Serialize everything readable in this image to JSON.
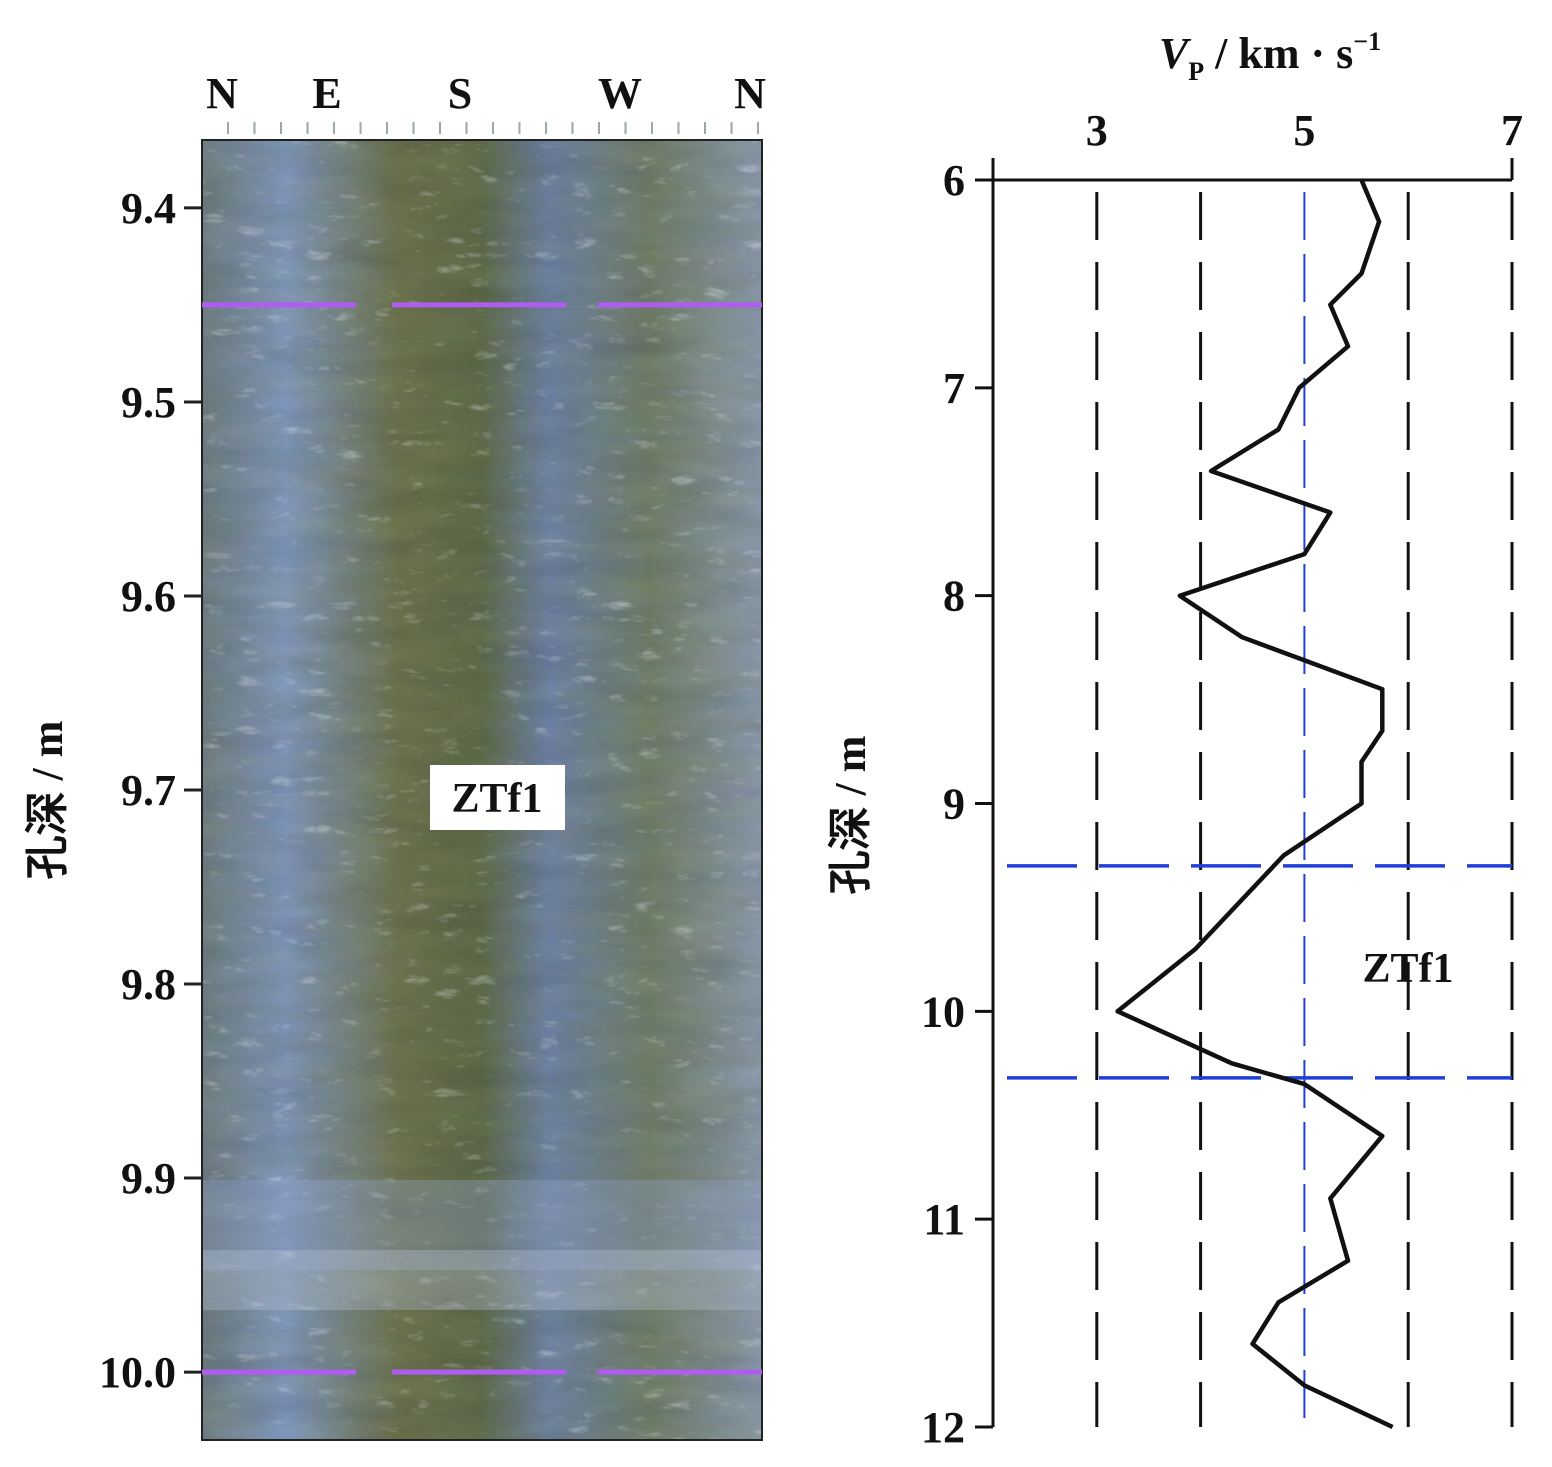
{
  "borehole_image": {
    "compass_labels": [
      "N",
      "E",
      "S",
      "W",
      "N"
    ],
    "depth_axis_label": "孔深 / m",
    "depth_ticks": [
      "9.4",
      "9.5",
      "9.6",
      "9.7",
      "9.8",
      "9.9",
      "10.0"
    ],
    "depth_range": [
      9.365,
      10.035
    ],
    "fracture_marker_depths": [
      9.45,
      10.0
    ],
    "fracture_marker_color": "#b15cf0",
    "zone_label": "ZTf1"
  },
  "chart_data": {
    "type": "line",
    "title_main": "V",
    "title_sub": "P",
    "title_unit": " / km · s",
    "title_exp": "−1",
    "xlabel": "V_P / km·s⁻¹",
    "ylabel": "孔深 / m",
    "x_ticks": [
      "3",
      "5",
      "7"
    ],
    "x_tick_values": [
      3,
      5,
      7
    ],
    "xlim": [
      2,
      7
    ],
    "y_ticks": [
      "6",
      "7",
      "8",
      "9",
      "10",
      "11",
      "12"
    ],
    "y_tick_values": [
      6,
      7,
      8,
      9,
      10,
      11,
      12
    ],
    "ylim": [
      6,
      12
    ],
    "y_inverted": true,
    "x_axis_position": "top",
    "grid": "dashed vertical at 3, 4, 5, 6, 7",
    "series": [
      {
        "color": "#111111",
        "points": [
          [
            5.55,
            6.0
          ],
          [
            5.72,
            6.2
          ],
          [
            5.55,
            6.45
          ],
          [
            5.25,
            6.6
          ],
          [
            5.42,
            6.8
          ],
          [
            4.95,
            7.0
          ],
          [
            4.75,
            7.2
          ],
          [
            4.1,
            7.4
          ],
          [
            5.25,
            7.6
          ],
          [
            5.0,
            7.8
          ],
          [
            3.8,
            8.0
          ],
          [
            4.4,
            8.2
          ],
          [
            5.75,
            8.45
          ],
          [
            5.75,
            8.65
          ],
          [
            5.55,
            8.8
          ],
          [
            5.55,
            9.0
          ],
          [
            4.8,
            9.25
          ],
          [
            3.95,
            9.7
          ],
          [
            3.2,
            10.0
          ],
          [
            4.3,
            10.25
          ],
          [
            5.0,
            10.35
          ],
          [
            5.75,
            10.6
          ],
          [
            5.25,
            10.9
          ],
          [
            5.42,
            11.2
          ],
          [
            4.75,
            11.4
          ],
          [
            4.5,
            11.6
          ],
          [
            5.0,
            11.8
          ],
          [
            5.85,
            12.0
          ]
        ]
      }
    ],
    "zone_boundaries": [
      9.3,
      10.32
    ],
    "zone_boundary_color": "#1f3fd8",
    "highlight_gridline_value": 5,
    "zone_label": "ZTf1"
  }
}
